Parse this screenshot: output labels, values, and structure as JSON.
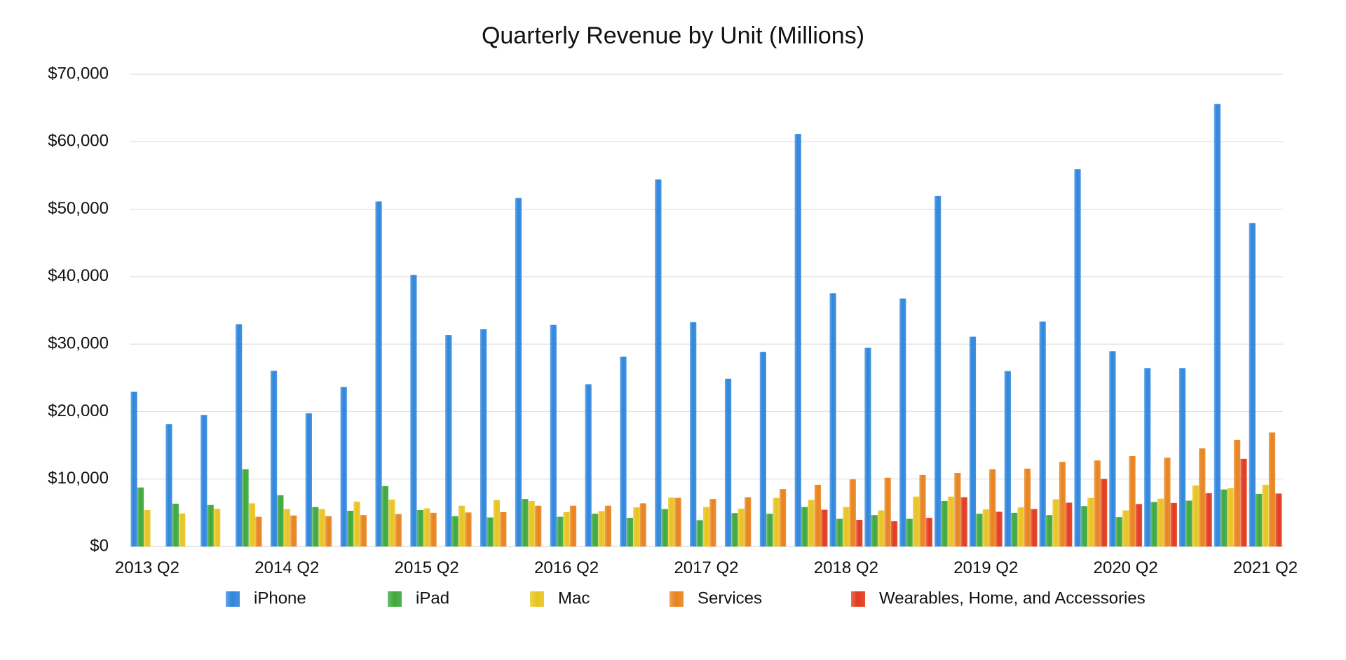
{
  "chart_data": {
    "type": "bar",
    "title": "Quarterly Revenue by Unit (Millions)",
    "xlabel": "",
    "ylabel": "",
    "ylim": [
      0,
      70000
    ],
    "y_ticks": [
      "$0",
      "$10,000",
      "$20,000",
      "$30,000",
      "$40,000",
      "$50,000",
      "$60,000",
      "$70,000"
    ],
    "y_tick_values": [
      0,
      10000,
      20000,
      30000,
      40000,
      50000,
      60000,
      70000
    ],
    "grid": true,
    "legend_position": "bottom",
    "x_tick_labels": [
      "2013 Q2",
      "2014 Q2",
      "2015 Q2",
      "2016 Q2",
      "2017 Q2",
      "2018 Q2",
      "2019 Q2",
      "2020 Q2",
      "2021 Q2"
    ],
    "x_tick_category_index": [
      0,
      4,
      8,
      12,
      16,
      20,
      24,
      28,
      32
    ],
    "categories": [
      "2013 Q2",
      "2013 Q3",
      "2013 Q4",
      "2014 Q1",
      "2014 Q2",
      "2014 Q3",
      "2014 Q4",
      "2015 Q1",
      "2015 Q2",
      "2015 Q3",
      "2015 Q4",
      "2016 Q1",
      "2016 Q2",
      "2016 Q3",
      "2016 Q4",
      "2017 Q1",
      "2017 Q2",
      "2017 Q3",
      "2017 Q4",
      "2018 Q1",
      "2018 Q2",
      "2018 Q3",
      "2018 Q4",
      "2019 Q1",
      "2019 Q2",
      "2019 Q3",
      "2019 Q4",
      "2020 Q1",
      "2020 Q2",
      "2020 Q3",
      "2020 Q4",
      "2021 Q1",
      "2021 Q2"
    ],
    "series": [
      {
        "name": "iPhone",
        "color": "#2f86dc",
        "values": [
          22950,
          18150,
          19500,
          32950,
          26050,
          19750,
          23650,
          51150,
          40250,
          31350,
          32200,
          51650,
          32850,
          24050,
          28150,
          54400,
          33250,
          24850,
          28850,
          61150,
          37550,
          29450,
          36750,
          51950,
          31100,
          26000,
          33350,
          55950,
          28950,
          26450,
          26450,
          65600,
          47950
        ]
      },
      {
        "name": "iPad",
        "color": "#3ea83c",
        "values": [
          8750,
          6350,
          6150,
          11450,
          7600,
          5850,
          5300,
          8950,
          5400,
          4500,
          4300,
          7050,
          4400,
          4850,
          4250,
          5550,
          3900,
          4950,
          4850,
          5850,
          4100,
          4650,
          4100,
          6750,
          4850,
          5000,
          4650,
          6000,
          4350,
          6600,
          6800,
          8450,
          7800
        ]
      },
      {
        "name": "Mac",
        "color": "#e8c420",
        "values": [
          5400,
          4900,
          5600,
          6400,
          5550,
          5550,
          6650,
          6950,
          5650,
          6050,
          6900,
          6750,
          5100,
          5250,
          5800,
          7250,
          5850,
          5600,
          7200,
          6900,
          5850,
          5350,
          7400,
          7400,
          5500,
          5800,
          7000,
          7200,
          5350,
          7100,
          9050,
          8650,
          9150
        ]
      },
      {
        "name": "Services",
        "color": "#e8831e",
        "values": [
          null,
          null,
          null,
          4400,
          4600,
          4500,
          4650,
          4800,
          5000,
          5050,
          5100,
          6050,
          6050,
          6050,
          6400,
          7200,
          7050,
          7300,
          8500,
          9150,
          9950,
          10200,
          10600,
          10900,
          11450,
          11550,
          12550,
          12750,
          13400,
          13150,
          14550,
          15800,
          16900
        ]
      },
      {
        "name": "Wearables, Home, and Accessories",
        "color": "#e23a1e",
        "values": [
          null,
          null,
          null,
          null,
          null,
          null,
          null,
          null,
          null,
          null,
          null,
          null,
          null,
          null,
          null,
          null,
          null,
          null,
          null,
          5450,
          3950,
          3750,
          4250,
          7300,
          5150,
          5550,
          6500,
          10000,
          6300,
          6450,
          7900,
          13000,
          7850
        ]
      }
    ]
  }
}
